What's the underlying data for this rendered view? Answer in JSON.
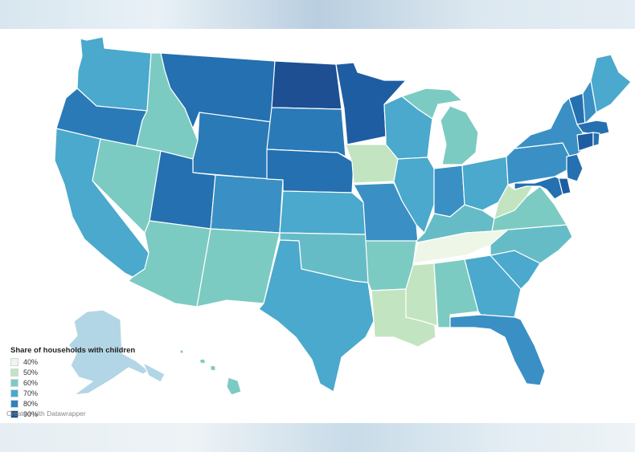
{
  "legend": {
    "title": "Share of households with children",
    "items": [
      {
        "label": "40%",
        "color": "#eef6e8"
      },
      {
        "label": "50%",
        "color": "#c3e4c0"
      },
      {
        "label": "60%",
        "color": "#7ccbc2"
      },
      {
        "label": "70%",
        "color": "#4aa9cc"
      },
      {
        "label": "80%",
        "color": "#2e82bd"
      },
      {
        "label": "90%",
        "color": "#1d4f92"
      }
    ]
  },
  "credit": "Created with Datawrapper",
  "states": [
    {
      "id": "WA",
      "color": "#4aa9cc"
    },
    {
      "id": "OR",
      "color": "#2a7ab8"
    },
    {
      "id": "CA",
      "color": "#4aa9cc"
    },
    {
      "id": "ID",
      "color": "#7ccbc2"
    },
    {
      "id": "NV",
      "color": "#7ccbc2"
    },
    {
      "id": "MT",
      "color": "#2470b0"
    },
    {
      "id": "WY",
      "color": "#2a7ab8"
    },
    {
      "id": "UT",
      "color": "#2470b0"
    },
    {
      "id": "AZ",
      "color": "#7ccbc2"
    },
    {
      "id": "CO",
      "color": "#3a90c4"
    },
    {
      "id": "NM",
      "color": "#7ccbc2"
    },
    {
      "id": "ND",
      "color": "#1d4f92"
    },
    {
      "id": "SD",
      "color": "#2a7ab8"
    },
    {
      "id": "NE",
      "color": "#2470b0"
    },
    {
      "id": "KS",
      "color": "#4aa9cc"
    },
    {
      "id": "OK",
      "color": "#66bcc6"
    },
    {
      "id": "TX",
      "color": "#4aa9cc"
    },
    {
      "id": "MN",
      "color": "#1f5da2"
    },
    {
      "id": "IA",
      "color": "#c3e4c0"
    },
    {
      "id": "MO",
      "color": "#3a90c4"
    },
    {
      "id": "AR",
      "color": "#7ccbc2"
    },
    {
      "id": "LA",
      "color": "#c3e4c0"
    },
    {
      "id": "WI",
      "color": "#4aa9cc"
    },
    {
      "id": "IL",
      "color": "#4aa9cc"
    },
    {
      "id": "MI",
      "color": "#7ccbc2"
    },
    {
      "id": "IN",
      "color": "#3a90c4"
    },
    {
      "id": "OH",
      "color": "#4aa9cc"
    },
    {
      "id": "KY",
      "color": "#66bcc6"
    },
    {
      "id": "TN",
      "color": "#eef6e8"
    },
    {
      "id": "MS",
      "color": "#c3e4c0"
    },
    {
      "id": "AL",
      "color": "#7ccbc2"
    },
    {
      "id": "GA",
      "color": "#4aa9cc"
    },
    {
      "id": "FL",
      "color": "#3a90c4"
    },
    {
      "id": "SC",
      "color": "#4aa9cc"
    },
    {
      "id": "NC",
      "color": "#66bcc6"
    },
    {
      "id": "VA",
      "color": "#7ccbc2"
    },
    {
      "id": "WV",
      "color": "#c3e4c0"
    },
    {
      "id": "PA",
      "color": "#3a90c4"
    },
    {
      "id": "NY",
      "color": "#3a90c4"
    },
    {
      "id": "ME",
      "color": "#4aa9cc"
    },
    {
      "id": "VT",
      "color": "#2470b0"
    },
    {
      "id": "NH",
      "color": "#3a90c4"
    },
    {
      "id": "MA",
      "color": "#2470b0"
    },
    {
      "id": "CT",
      "color": "#1f5da2"
    },
    {
      "id": "RI",
      "color": "#2470b0"
    },
    {
      "id": "NJ",
      "color": "#2470b0"
    },
    {
      "id": "DE",
      "color": "#1f5da2"
    },
    {
      "id": "MD",
      "color": "#2470b0"
    },
    {
      "id": "AK",
      "color": "#b3d6e6"
    },
    {
      "id": "HI",
      "color": "#7ccbc2"
    }
  ]
}
